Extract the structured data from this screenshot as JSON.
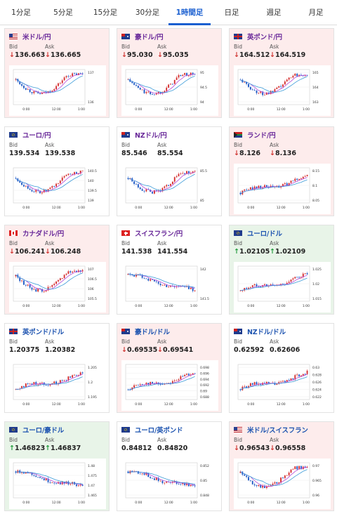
{
  "tabs": [
    {
      "label": "1分足",
      "active": false
    },
    {
      "label": "5分足",
      "active": false
    },
    {
      "label": "15分足",
      "active": false
    },
    {
      "label": "30分足",
      "active": false
    },
    {
      "label": "1時間足",
      "active": true
    },
    {
      "label": "日足",
      "active": false
    },
    {
      "label": "週足",
      "active": false
    },
    {
      "label": "月足",
      "active": false
    }
  ],
  "labels": {
    "bid": "Bid",
    "ask": "Ask"
  },
  "colors": {
    "down_bg": "#fdecec",
    "up_bg": "#e8f4e8",
    "up_arrow": "#1e9a3a",
    "down_arrow": "#d0312d",
    "candle_up": "#d42b2b",
    "candle_down": "#1a56c4",
    "ma": "#b44ad8"
  },
  "cards": [
    {
      "pair": "米ドル/円",
      "flag": "us",
      "state": "down",
      "bid": "136.663",
      "ask": "136.665",
      "bid_dir": "down",
      "ask_dir": "down",
      "title_color": "purple",
      "yticks": [
        "137",
        "136"
      ],
      "xticks": [
        "0:00",
        "12:00",
        "1:00"
      ],
      "trend": "vdip"
    },
    {
      "pair": "豪ドル/円",
      "flag": "au",
      "state": "down",
      "bid": "95.030",
      "ask": "95.035",
      "bid_dir": "down",
      "ask_dir": "down",
      "title_color": "purple",
      "yticks": [
        "95",
        "94.5",
        "94"
      ],
      "xticks": [
        "0:00",
        "12:00",
        "1:00"
      ],
      "trend": "vdip"
    },
    {
      "pair": "英ポンド/円",
      "flag": "uk",
      "state": "down",
      "bid": "164.512",
      "ask": "164.519",
      "bid_dir": "down",
      "ask_dir": "down",
      "title_color": "purple",
      "yticks": [
        "165",
        "164",
        "163"
      ],
      "xticks": [
        "0:00",
        "12:00",
        "1:00"
      ],
      "trend": "vdip"
    },
    {
      "pair": "ユーロ/円",
      "flag": "eu",
      "state": "flat",
      "bid": "139.534",
      "ask": "139.538",
      "bid_dir": "none",
      "ask_dir": "none",
      "title_color": "purple",
      "yticks": [
        "140.5",
        "140",
        "139.5",
        "139"
      ],
      "xticks": [
        "0:00",
        "12:00",
        "1:00"
      ],
      "trend": "vdip"
    },
    {
      "pair": "NZドル/円",
      "flag": "nz",
      "state": "flat",
      "bid": "85.546",
      "ask": "85.554",
      "bid_dir": "none",
      "ask_dir": "none",
      "title_color": "purple",
      "yticks": [
        "85.5",
        "85"
      ],
      "xticks": [
        "0:00",
        "12:00",
        "1:00"
      ],
      "trend": "vdip"
    },
    {
      "pair": "ランド/円",
      "flag": "za",
      "state": "down",
      "bid": "8.126",
      "ask": "8.136",
      "bid_dir": "down",
      "ask_dir": "down",
      "title_color": "purple",
      "yticks": [
        "8.15",
        "8.1",
        "8.05"
      ],
      "xticks": [
        "0:00",
        "12:00",
        "1:00"
      ],
      "trend": "rise"
    },
    {
      "pair": "カナダドル/円",
      "flag": "ca",
      "state": "down",
      "bid": "106.241",
      "ask": "106.248",
      "bid_dir": "down",
      "ask_dir": "down",
      "title_color": "purple",
      "yticks": [
        "107",
        "106.5",
        "106",
        "105.5"
      ],
      "xticks": [
        "0:00",
        "12:00",
        "1:00"
      ],
      "trend": "vdip"
    },
    {
      "pair": "スイスフラン/円",
      "flag": "ch",
      "state": "flat",
      "bid": "141.538",
      "ask": "141.554",
      "bid_dir": "none",
      "ask_dir": "none",
      "title_color": "purple",
      "yticks": [
        "142",
        "141.5"
      ],
      "xticks": [
        "0:00",
        "12:00",
        "1:00"
      ],
      "trend": "fall"
    },
    {
      "pair": "ユーロ/ドル",
      "flag": "eu",
      "state": "up",
      "bid": "1.02105",
      "ask": "1.02109",
      "bid_dir": "up",
      "ask_dir": "up",
      "title_color": "blue",
      "yticks": [
        "1.025",
        "1.02",
        "1.015"
      ],
      "xticks": [
        "0:00",
        "12:00",
        "1:00"
      ],
      "trend": "rise"
    },
    {
      "pair": "英ポンド/ドル",
      "flag": "uk",
      "state": "flat",
      "bid": "1.20375",
      "ask": "1.20382",
      "bid_dir": "none",
      "ask_dir": "none",
      "title_color": "blue",
      "yticks": [
        "1.205",
        "1.2",
        "1.195"
      ],
      "xticks": [
        "0:00",
        "12:00",
        "1:00"
      ],
      "trend": "rise"
    },
    {
      "pair": "豪ドル/ドル",
      "flag": "au",
      "state": "down",
      "bid": "0.69535",
      "ask": "0.69541",
      "bid_dir": "down",
      "ask_dir": "down",
      "title_color": "blue",
      "yticks": [
        "0.698",
        "0.696",
        "0.694",
        "0.692",
        "0.69",
        "0.688"
      ],
      "xticks": [
        "0:00",
        "12:00",
        "1:00"
      ],
      "trend": "rise"
    },
    {
      "pair": "NZドル/ドル",
      "flag": "nz",
      "state": "flat",
      "bid": "0.62592",
      "ask": "0.62606",
      "bid_dir": "none",
      "ask_dir": "none",
      "title_color": "blue",
      "yticks": [
        "0.63",
        "0.628",
        "0.626",
        "0.624",
        "0.622"
      ],
      "xticks": [
        "0:00",
        "12:00",
        "1:00"
      ],
      "trend": "rise"
    },
    {
      "pair": "ユーロ/豪ドル",
      "flag": "eu",
      "state": "up",
      "bid": "1.46823",
      "ask": "1.46837",
      "bid_dir": "up",
      "ask_dir": "up",
      "title_color": "blue",
      "yticks": [
        "1.48",
        "1.475",
        "1.47",
        "1.465"
      ],
      "xticks": [
        "0:00",
        "12:00",
        "1:00"
      ],
      "trend": "fall"
    },
    {
      "pair": "ユーロ/英ポンド",
      "flag": "eu",
      "state": "flat",
      "bid": "0.84812",
      "ask": "0.84820",
      "bid_dir": "none",
      "ask_dir": "none",
      "title_color": "blue",
      "yticks": [
        "0.852",
        "0.85",
        "0.848"
      ],
      "xticks": [
        "0:00",
        "12:00",
        "1:00"
      ],
      "trend": "fall"
    },
    {
      "pair": "米ドル/スイスフラン",
      "flag": "us",
      "state": "down",
      "bid": "0.96543",
      "ask": "0.96558",
      "bid_dir": "down",
      "ask_dir": "down",
      "title_color": "blue",
      "yticks": [
        "0.97",
        "0.965",
        "0.96"
      ],
      "xticks": [
        "0:00",
        "12:00",
        "1:00"
      ],
      "trend": "vdip"
    }
  ]
}
